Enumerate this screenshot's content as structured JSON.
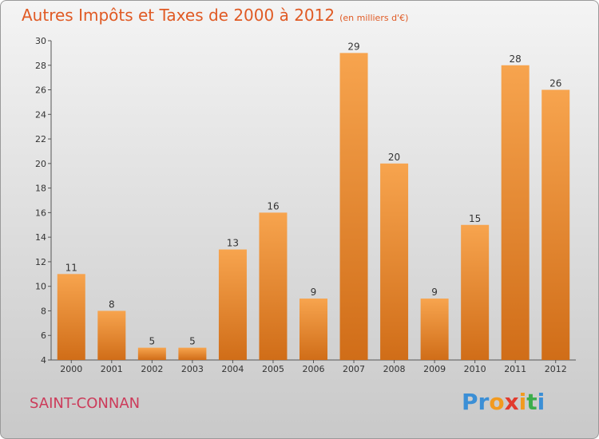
{
  "header": {
    "title": "Autres Impôts et Taxes de 2000 à 2012",
    "unit": "(en milliers d'€)"
  },
  "footer": {
    "commune": "SAINT-CONNAN",
    "logo_letters": [
      "P",
      "r",
      "o",
      "x",
      "i",
      "t",
      "i"
    ]
  },
  "colors": {
    "bar_light": "#f7a44e",
    "bar_dark": "#d06d18",
    "title": "#e05a24",
    "commune": "#cc3b5a",
    "logo": [
      "#3b8fd6",
      "#3b8fd6",
      "#f29a1f",
      "#e23b2e",
      "#f29a1f",
      "#3cad4b",
      "#3b8fd6"
    ]
  },
  "chart_data": {
    "type": "bar",
    "title": "Autres Impôts et Taxes de 2000 à 2012",
    "categories": [
      "2000",
      "2001",
      "2002",
      "2003",
      "2004",
      "2005",
      "2006",
      "2007",
      "2008",
      "2009",
      "2010",
      "2011",
      "2012"
    ],
    "values": [
      11,
      8,
      5,
      5,
      13,
      16,
      9,
      29,
      20,
      9,
      15,
      28,
      26
    ],
    "ylim": [
      4,
      30
    ],
    "yticks": [
      4,
      6,
      8,
      10,
      12,
      14,
      16,
      18,
      20,
      22,
      24,
      26,
      28,
      30
    ],
    "grid": false,
    "data_labels": true
  }
}
